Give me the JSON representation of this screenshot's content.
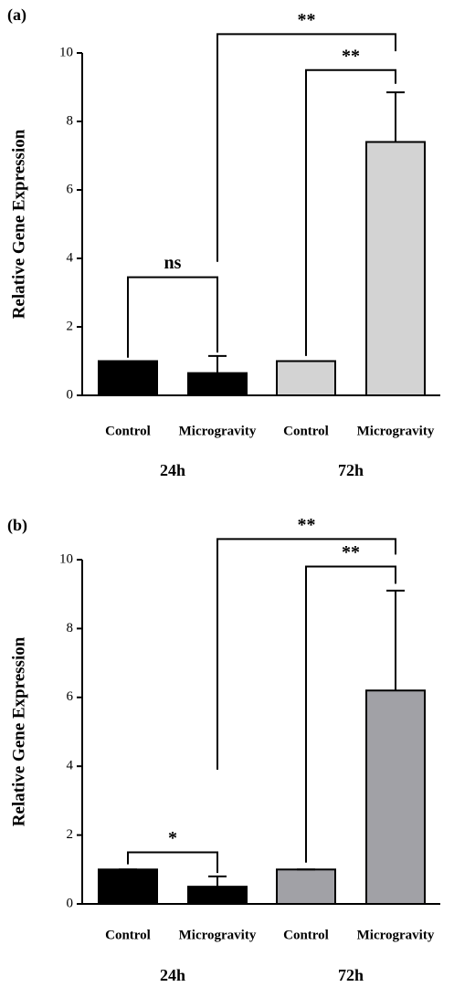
{
  "chart_data": [
    {
      "type": "bar",
      "label": "(a)",
      "y_label": "Relative Gene Expression",
      "categories": [
        "Control",
        "Microgravity",
        "Control",
        "Microgravity"
      ],
      "groups": [
        "24h",
        "72h"
      ],
      "values": [
        1.0,
        0.65,
        1.0,
        7.4
      ],
      "errors": [
        0,
        0.5,
        0,
        1.45
      ],
      "colors": [
        "#000000",
        "#000000",
        "#d3d3d3",
        "#d3d3d3"
      ],
      "ylim": [
        0,
        10
      ],
      "yticks": [
        0,
        2,
        4,
        6,
        8,
        10
      ],
      "annotations": [
        "ns",
        "**",
        "**"
      ]
    },
    {
      "type": "bar",
      "label": "(b)",
      "y_label": "Relative Gene Expression",
      "categories": [
        "Control",
        "Microgravity",
        "Control",
        "Microgravity"
      ],
      "groups": [
        "24h",
        "72h"
      ],
      "values": [
        1.0,
        0.5,
        1.0,
        6.2
      ],
      "errors": [
        0,
        0.3,
        0,
        2.9
      ],
      "colors": [
        "#000000",
        "#000000",
        "#a1a1a6",
        "#a1a1a6"
      ],
      "ylim": [
        0,
        10
      ],
      "yticks": [
        0,
        2,
        4,
        6,
        8,
        10
      ],
      "annotations": [
        "*",
        "**",
        "**"
      ]
    }
  ]
}
